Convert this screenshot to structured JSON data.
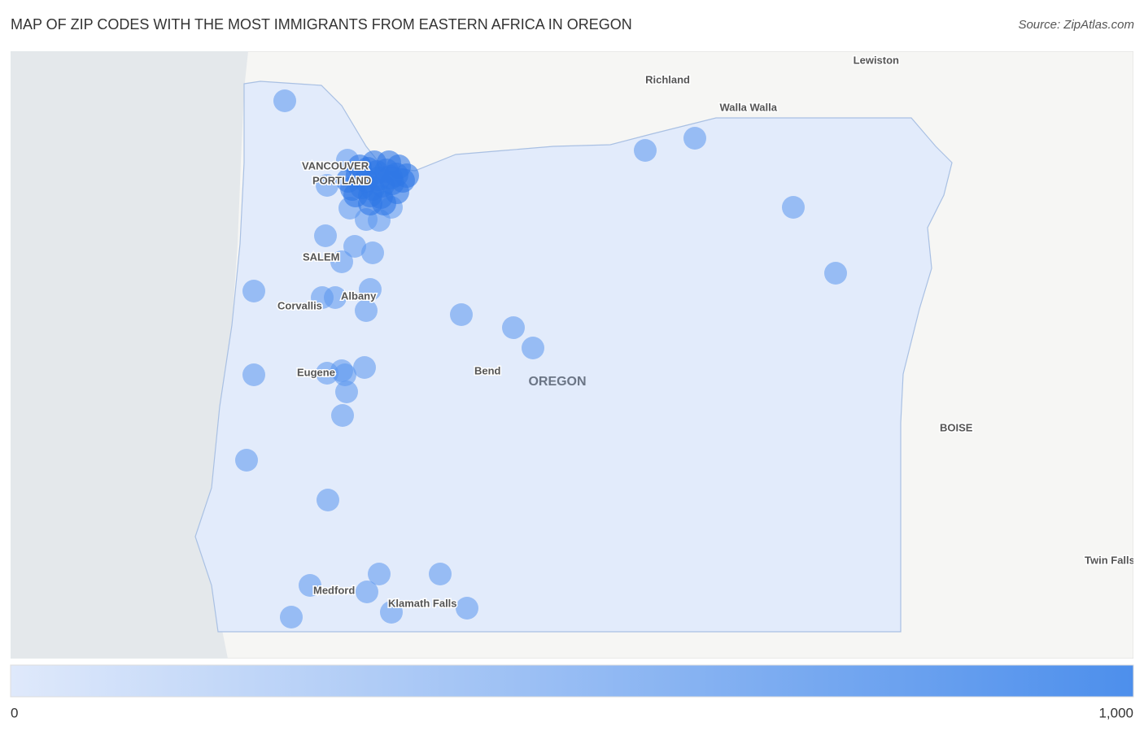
{
  "header": {
    "title": "MAP OF ZIP CODES WITH THE MOST IMMIGRANTS FROM EASTERN AFRICA IN OREGON",
    "source": "Source: ZipAtlas.com"
  },
  "map": {
    "state_label": "OREGON",
    "cities": [
      "Lewiston",
      "Richland",
      "Walla Walla",
      "VANCOUVER",
      "PORTLAND",
      "SALEM",
      "Albany",
      "Corvallis",
      "Eugene",
      "Bend",
      "BOISE",
      "Twin Falls",
      "Medford",
      "Klamath Falls"
    ]
  },
  "legend": {
    "ticks": [
      0,
      {
        "value": 1000,
        "label": "1,000"
      }
    ]
  }
}
